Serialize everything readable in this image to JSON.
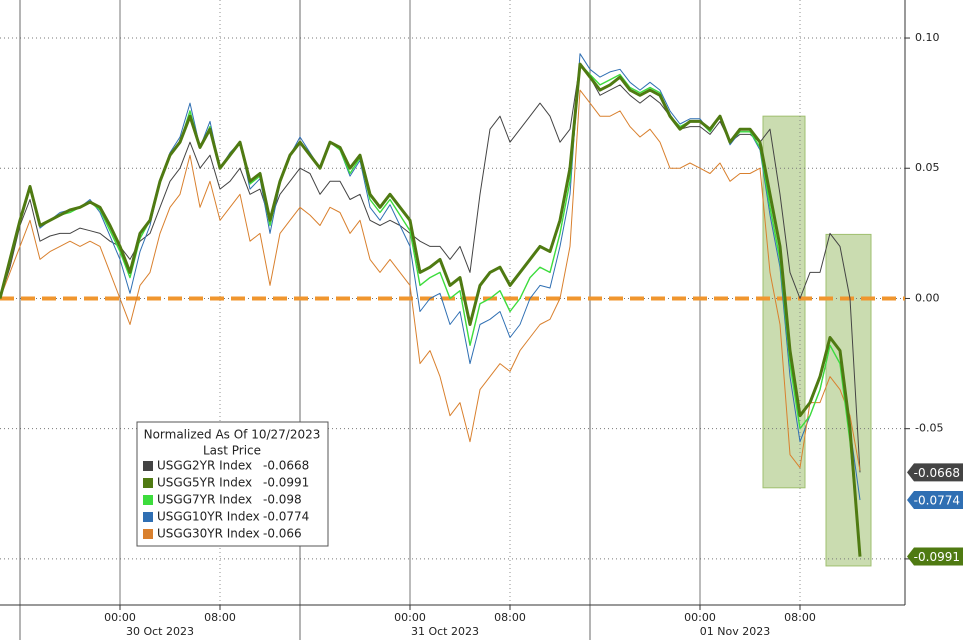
{
  "chart_data": {
    "type": "line",
    "categories": [
      null,
      null,
      null,
      null,
      null,
      null,
      null,
      null,
      null,
      null,
      null,
      null,
      "00:00",
      null,
      null,
      null,
      null,
      null,
      null,
      null,
      null,
      null,
      "08:00",
      null,
      null,
      null,
      null,
      null,
      null,
      null,
      null,
      null,
      null,
      null,
      null,
      null,
      null,
      null,
      null,
      null,
      null,
      "00:00",
      null,
      null,
      null,
      null,
      null,
      null,
      null,
      null,
      null,
      "08:00",
      null,
      null,
      null,
      null,
      null,
      null,
      null,
      null,
      null,
      null,
      null,
      null,
      null,
      null,
      null,
      null,
      null,
      null,
      "00:00",
      null,
      null,
      null,
      null,
      null,
      null,
      null,
      null,
      null,
      "08:00",
      null,
      null,
      null,
      null,
      null,
      null
    ],
    "date_groups": [
      {
        "label": "30 Oct 2023",
        "start": 2,
        "end": 30
      },
      {
        "label": "31 Oct 2023",
        "start": 30,
        "end": 59
      },
      {
        "label": "01 Nov 2023",
        "start": 59,
        "end": 88
      }
    ],
    "ylim": [
      -0.1177,
      0.1146
    ],
    "yticks": [
      {
        "value": 0.1,
        "label": "0.10"
      },
      0.05,
      {
        "value": 0,
        "label": "0.00"
      },
      -0.05,
      {
        "value": -0.1,
        "label": null
      }
    ],
    "grid": true,
    "zero_line_color": "#f0962e",
    "legend_title": "Normalized As Of 10/27/2023",
    "legend_subtitle": "Last Price",
    "highlights": [
      {
        "start": 76.3,
        "end": 80.5,
        "ymin": -0.0727,
        "ymax": 0.07,
        "color": "#9fbf6f"
      },
      {
        "start": 82.6,
        "end": 87.1,
        "ymin": -0.1027,
        "ymax": 0.0246,
        "color": "#9fbf6f"
      }
    ],
    "series": [
      {
        "name": "USGG2YR Index",
        "color": "#444444",
        "width": 1,
        "tag": true,
        "values": [
          0,
          0.012,
          0.028,
          0.038,
          0.022,
          0.024,
          0.025,
          0.025,
          0.027,
          0.026,
          0.025,
          0.022,
          0.02,
          0.015,
          0.022,
          0.025,
          0.035,
          0.045,
          0.05,
          0.06,
          0.05,
          0.055,
          0.042,
          0.045,
          0.05,
          0.04,
          0.042,
          0.03,
          0.04,
          0.045,
          0.05,
          0.048,
          0.04,
          0.045,
          0.045,
          0.038,
          0.04,
          0.03,
          0.028,
          0.03,
          0.028,
          0.025,
          0.022,
          0.02,
          0.02,
          0.015,
          0.02,
          0.01,
          0.04,
          0.065,
          0.07,
          0.06,
          0.065,
          0.07,
          0.075,
          0.07,
          0.06,
          0.065,
          0.09,
          0.085,
          0.078,
          0.08,
          0.082,
          0.078,
          0.075,
          0.078,
          0.075,
          0.07,
          0.065,
          0.066,
          0.066,
          0.063,
          0.068,
          0.06,
          0.063,
          0.063,
          0.06,
          0.065,
          0.04,
          0.01,
          0.0,
          0.01,
          0.01,
          0.025,
          0.02,
          0.0,
          -0.0668
        ]
      },
      {
        "name": "USGG5YR Index",
        "color": "#4f7a12",
        "width": 3,
        "tag": true,
        "values": [
          0,
          0.015,
          0.03,
          0.043,
          0.028,
          0.03,
          0.032,
          0.034,
          0.035,
          0.037,
          0.035,
          0.028,
          0.02,
          0.01,
          0.025,
          0.03,
          0.045,
          0.055,
          0.06,
          0.07,
          0.058,
          0.065,
          0.05,
          0.055,
          0.06,
          0.045,
          0.048,
          0.03,
          0.045,
          0.055,
          0.06,
          0.055,
          0.05,
          0.06,
          0.058,
          0.05,
          0.055,
          0.04,
          0.035,
          0.04,
          0.035,
          0.03,
          0.01,
          0.012,
          0.015,
          0.005,
          0.008,
          -0.01,
          0.005,
          0.01,
          0.012,
          0.005,
          0.01,
          0.015,
          0.02,
          0.018,
          0.03,
          0.05,
          0.09,
          0.085,
          0.08,
          0.082,
          0.085,
          0.08,
          0.078,
          0.08,
          0.078,
          0.07,
          0.065,
          0.068,
          0.068,
          0.065,
          0.07,
          0.06,
          0.065,
          0.065,
          0.06,
          0.04,
          0.02,
          -0.02,
          -0.045,
          -0.04,
          -0.03,
          -0.015,
          -0.02,
          -0.05,
          -0.0991
        ]
      },
      {
        "name": "USGG7YR Index",
        "color": "#3ddc3d",
        "width": 1.4,
        "tag": false,
        "values": [
          0,
          0.015,
          0.03,
          0.042,
          0.028,
          0.03,
          0.032,
          0.033,
          0.035,
          0.037,
          0.034,
          0.026,
          0.018,
          0.008,
          0.023,
          0.03,
          0.045,
          0.055,
          0.06,
          0.072,
          0.058,
          0.066,
          0.05,
          0.055,
          0.06,
          0.044,
          0.047,
          0.028,
          0.045,
          0.055,
          0.06,
          0.055,
          0.05,
          0.06,
          0.057,
          0.048,
          0.054,
          0.038,
          0.033,
          0.038,
          0.032,
          0.026,
          0.005,
          0.008,
          0.01,
          0.0,
          0.003,
          -0.018,
          -0.002,
          0.0,
          0.003,
          -0.005,
          0.0,
          0.008,
          0.012,
          0.01,
          0.025,
          0.045,
          0.09,
          0.086,
          0.082,
          0.084,
          0.086,
          0.081,
          0.079,
          0.081,
          0.079,
          0.07,
          0.066,
          0.068,
          0.068,
          0.064,
          0.07,
          0.06,
          0.064,
          0.064,
          0.058,
          0.035,
          0.015,
          -0.025,
          -0.05,
          -0.045,
          -0.035,
          -0.018,
          -0.025,
          -0.055,
          -0.098
        ]
      },
      {
        "name": "USGG10YR Index",
        "color": "#2f6fb3",
        "width": 1,
        "tag": true,
        "values": [
          0,
          0.016,
          0.03,
          0.042,
          0.027,
          0.03,
          0.033,
          0.034,
          0.035,
          0.038,
          0.033,
          0.024,
          0.015,
          0.002,
          0.018,
          0.028,
          0.045,
          0.056,
          0.062,
          0.075,
          0.058,
          0.068,
          0.05,
          0.056,
          0.06,
          0.042,
          0.046,
          0.025,
          0.044,
          0.055,
          0.062,
          0.056,
          0.05,
          0.06,
          0.057,
          0.047,
          0.053,
          0.035,
          0.03,
          0.036,
          0.028,
          0.02,
          -0.005,
          0.0,
          0.002,
          -0.01,
          -0.005,
          -0.025,
          -0.01,
          -0.008,
          -0.005,
          -0.015,
          -0.01,
          0.0,
          0.005,
          0.004,
          0.02,
          0.04,
          0.094,
          0.088,
          0.085,
          0.087,
          0.088,
          0.083,
          0.08,
          0.083,
          0.08,
          0.072,
          0.067,
          0.069,
          0.069,
          0.064,
          0.07,
          0.059,
          0.064,
          0.064,
          0.057,
          0.032,
          0.012,
          -0.03,
          -0.055,
          -0.045,
          -0.035,
          -0.018,
          -0.025,
          -0.05,
          -0.0774
        ]
      },
      {
        "name": "USGG30YR Index",
        "color": "#d9802e",
        "width": 1,
        "tag": false,
        "values": [
          0,
          0.01,
          0.02,
          0.03,
          0.015,
          0.018,
          0.02,
          0.022,
          0.02,
          0.022,
          0.02,
          0.01,
          0.0,
          -0.01,
          0.005,
          0.01,
          0.025,
          0.035,
          0.04,
          0.055,
          0.035,
          0.045,
          0.03,
          0.035,
          0.04,
          0.022,
          0.025,
          0.005,
          0.025,
          0.03,
          0.035,
          0.032,
          0.028,
          0.035,
          0.033,
          0.025,
          0.03,
          0.015,
          0.01,
          0.015,
          0.01,
          0.005,
          -0.025,
          -0.02,
          -0.03,
          -0.045,
          -0.04,
          -0.055,
          -0.035,
          -0.03,
          -0.025,
          -0.028,
          -0.02,
          -0.015,
          -0.01,
          -0.008,
          0.0,
          0.02,
          0.08,
          0.075,
          0.07,
          0.07,
          0.072,
          0.066,
          0.062,
          0.065,
          0.06,
          0.05,
          0.05,
          0.052,
          0.05,
          0.048,
          0.052,
          0.045,
          0.048,
          0.048,
          0.05,
          0.01,
          -0.01,
          -0.06,
          -0.065,
          -0.04,
          -0.04,
          -0.03,
          -0.035,
          -0.045,
          -0.066
        ]
      }
    ]
  }
}
